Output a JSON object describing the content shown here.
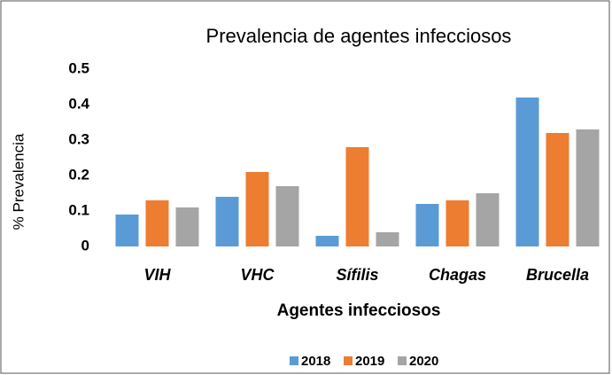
{
  "chart_data": {
    "type": "bar",
    "title": "Prevalencia de agentes infecciosos",
    "x_label": "Agentes infecciosos",
    "y_label": "% Prevalencia",
    "categories": [
      "VIH",
      "VHC",
      "Sífilis",
      "Chagas",
      "Brucella"
    ],
    "series": [
      {
        "name": "2018",
        "color": "#5b9bd5",
        "values": [
          0.09,
          0.14,
          0.03,
          0.12,
          0.42
        ]
      },
      {
        "name": "2019",
        "color": "#ed7d31",
        "values": [
          0.13,
          0.21,
          0.28,
          0.13,
          0.32
        ]
      },
      {
        "name": "2020",
        "color": "#a5a5a5",
        "values": [
          0.11,
          0.17,
          0.04,
          0.15,
          0.33
        ]
      }
    ],
    "ylim": [
      0,
      0.5
    ],
    "yticks": [
      0,
      0.1,
      0.2,
      0.3,
      0.4,
      0.5
    ],
    "grid": false,
    "legend": "bottom"
  }
}
